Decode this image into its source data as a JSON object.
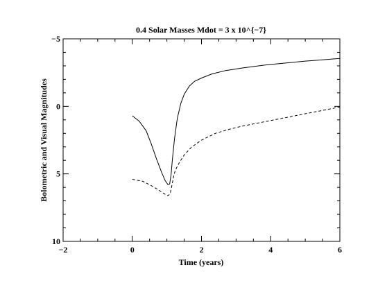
{
  "chart_data": {
    "type": "line",
    "title": "0.4 Solar Masses  Mdot = 3 x 10^{−7}",
    "xlabel": "Time (years)",
    "ylabel": "Bolometric and Visual Magnitudes",
    "xlim": [
      -2,
      6
    ],
    "ylim": [
      10,
      -5
    ],
    "y_inverted": true,
    "x_ticks": [
      -2,
      0,
      2,
      4,
      6
    ],
    "x_tick_labels": [
      "−2",
      "0",
      "2",
      "4",
      "6"
    ],
    "y_ticks": [
      -5,
      0,
      5,
      10
    ],
    "y_tick_labels": [
      "−5",
      "0",
      "5",
      "10"
    ],
    "grid": false,
    "legend": "none",
    "series": [
      {
        "style": "solid",
        "color": "#000000",
        "x": [
          0,
          0.2,
          0.4,
          0.55,
          0.7,
          0.85,
          0.95,
          1.03,
          1.08,
          1.12,
          1.16,
          1.22,
          1.3,
          1.4,
          1.5,
          1.65,
          1.8,
          2.0,
          2.3,
          2.7,
          3.2,
          3.8,
          4.4,
          5.0,
          5.5,
          6.0
        ],
        "y": [
          0.7,
          1.1,
          1.8,
          2.8,
          3.9,
          4.9,
          5.5,
          5.8,
          5.75,
          5.1,
          3.9,
          2.4,
          0.9,
          -0.2,
          -0.9,
          -1.5,
          -1.85,
          -2.1,
          -2.4,
          -2.65,
          -2.85,
          -3.05,
          -3.2,
          -3.35,
          -3.45,
          -3.55
        ]
      },
      {
        "style": "dashed",
        "color": "#000000",
        "x": [
          0,
          0.3,
          0.5,
          0.7,
          0.85,
          1.0,
          1.05,
          1.1,
          1.15,
          1.2,
          1.25,
          1.35,
          1.5,
          1.7,
          2.0,
          2.4,
          2.8,
          3.2,
          3.6,
          4.0,
          4.5,
          5.0,
          5.5,
          6.0
        ],
        "y": [
          5.4,
          5.55,
          5.8,
          6.1,
          6.35,
          6.6,
          6.6,
          6.4,
          5.8,
          5.1,
          4.7,
          4.2,
          3.6,
          3.05,
          2.5,
          2.0,
          1.7,
          1.45,
          1.25,
          1.05,
          0.8,
          0.55,
          0.3,
          0.05
        ]
      }
    ]
  }
}
